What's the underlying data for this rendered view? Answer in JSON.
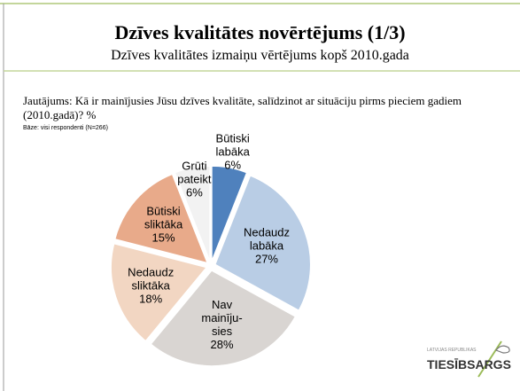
{
  "header": {
    "title": "Dzīves kvalitātes novērtējums (1/3)",
    "subtitle": "Dzīves kvalitātes izmaiņu vērtējums kopš 2010.gada"
  },
  "question": "Jautājums: Kā ir mainījusies Jūsu dzīves kvalitāte, salīdzinot ar situāciju pirms pieciem gadiem (2010.gadā)? %",
  "base": "Bāze: visi respondenti (N=266)",
  "chart_data": {
    "type": "pie",
    "categories": [
      "Būtiski\nlabāka",
      "Nedaudz\nlabāka",
      "Nav\nmainīju-\nsies",
      "Nedaudz\nsliktāka",
      "Būtiski\nsliktāka",
      "Grūti\npateikt"
    ],
    "values": [
      6,
      27,
      28,
      18,
      15,
      6
    ],
    "value_labels": [
      "6%",
      "27%",
      "28%",
      "18%",
      "15%",
      "6%"
    ],
    "colors": [
      "#4f81bd",
      "#b9cde5",
      "#d9d5d2",
      "#f2d6c2",
      "#e8aa8a",
      "#f2f2f2"
    ]
  },
  "logo": {
    "small": "LATVIJAS REPUBLIKAS",
    "name": "TIESĪBSARGS"
  }
}
